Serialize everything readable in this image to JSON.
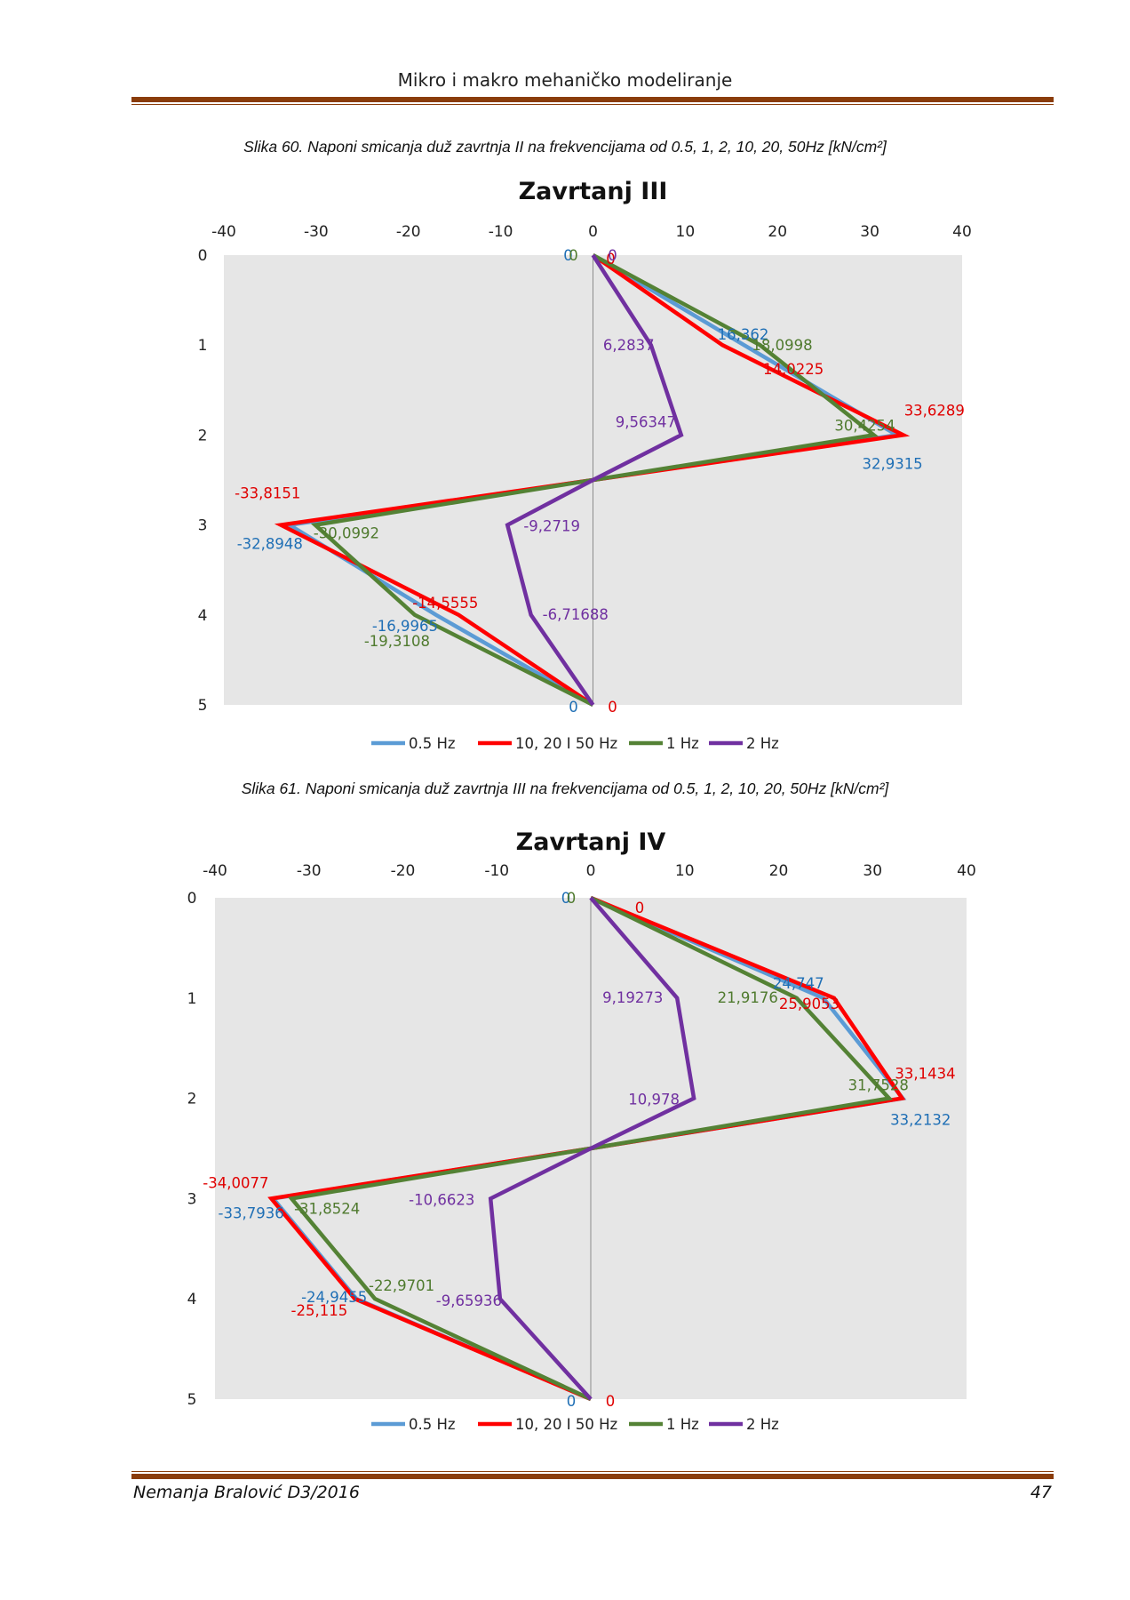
{
  "header": {
    "title": "Mikro i makro mehaničko modeliranje"
  },
  "captions": {
    "fig60": "Slika 60. Naponi smicanja duž zavrtnja II na frekvencijama od 0.5, 1, 2, 10, 20, 50Hz  [kN/cm²]",
    "fig61": "Slika 61. Naponi smicanja duž zavrtnja III na frekvencijama od 0.5, 1, 2, 10, 20, 50Hz  [kN/cm²]"
  },
  "footer": {
    "author": "Nemanja Bralović D3/2016",
    "page": "47"
  },
  "chart_data": [
    {
      "type": "line",
      "title": "Zavrtanj III",
      "xlim": [
        -40,
        40
      ],
      "ylim": [
        0,
        5
      ],
      "x_ticks": [
        -40,
        -30,
        -20,
        -10,
        0,
        10,
        20,
        30,
        40
      ],
      "y_ticks": [
        0,
        1,
        2,
        3,
        4,
        5
      ],
      "y_reversed": true,
      "x_axis_position": "top",
      "grid": false,
      "legend": "bottom",
      "y": [
        0,
        1,
        2,
        2.5,
        3,
        4,
        5
      ],
      "series": [
        {
          "name": "0.5 Hz",
          "color": "#5b9bd5",
          "label_color": "#1f6fb5",
          "x": [
            0,
            16.362,
            32.9315,
            0,
            -32.8948,
            -16.9965,
            0
          ],
          "labels": [
            "0",
            "16,362",
            "32,9315",
            "",
            "-32,8948",
            "-16,9965",
            "0"
          ]
        },
        {
          "name": "10, 20 I 50 Hz",
          "color": "#ff0000",
          "label_color": "#e00000",
          "x": [
            0,
            14.0225,
            33.6289,
            0,
            -33.8151,
            -14.5555,
            0
          ],
          "labels": [
            "0",
            "14,0225",
            "33,6289",
            "",
            "-33,8151",
            "-14,5555",
            "0"
          ]
        },
        {
          "name": "1 Hz",
          "color": "#548235",
          "label_color": "#4f7a2e",
          "x": [
            0,
            18.0998,
            30.4254,
            0,
            -30.0992,
            -19.3108,
            0
          ],
          "labels": [
            "0",
            "18,0998",
            "30,4254",
            "",
            "-30,0992",
            "-19,3108",
            ""
          ]
        },
        {
          "name": "2 Hz",
          "color": "#7030a0",
          "label_color": "#7030a0",
          "x": [
            0,
            6.2837,
            9.56347,
            0,
            -9.2719,
            -6.71688,
            0
          ],
          "labels": [
            "0",
            "6,2837",
            "9,56347",
            "",
            "-9,2719",
            "-6,71688",
            ""
          ]
        }
      ]
    },
    {
      "type": "line",
      "title": "Zavrtanj IV",
      "xlim": [
        -40,
        40
      ],
      "ylim": [
        0,
        5
      ],
      "x_ticks": [
        -40,
        -30,
        -20,
        -10,
        0,
        10,
        20,
        30,
        40
      ],
      "y_ticks": [
        0,
        1,
        2,
        3,
        4,
        5
      ],
      "y_reversed": true,
      "x_axis_position": "top",
      "grid": false,
      "legend": "bottom",
      "y": [
        0,
        1,
        2,
        2.5,
        3,
        4,
        5
      ],
      "series": [
        {
          "name": "0.5 Hz",
          "color": "#5b9bd5",
          "label_color": "#1f6fb5",
          "x": [
            0,
            24.747,
            33.2132,
            0,
            -33.7936,
            -24.9455,
            0
          ],
          "labels": [
            "0",
            "24,747",
            "33,2132",
            "",
            "-33,7936",
            "-24,9455",
            "0"
          ]
        },
        {
          "name": "10, 20 I 50 Hz",
          "color": "#ff0000",
          "label_color": "#e00000",
          "x": [
            0,
            25.9053,
            33.1434,
            0,
            -34.0077,
            -25.115,
            0
          ],
          "labels": [
            "0",
            "25,9053",
            "33,1434",
            "",
            "-34,0077",
            "-25,115",
            "0"
          ]
        },
        {
          "name": "1 Hz",
          "color": "#548235",
          "label_color": "#4f7a2e",
          "x": [
            0,
            21.9176,
            31.7528,
            0,
            -31.8524,
            -22.9701,
            0
          ],
          "labels": [
            "0",
            "21,9176",
            "31,7528",
            "",
            "-31,8524",
            "-22,9701",
            ""
          ]
        },
        {
          "name": "2 Hz",
          "color": "#7030a0",
          "label_color": "#7030a0",
          "x": [
            0,
            9.19273,
            10.978,
            0,
            -10.6623,
            -9.65936,
            0
          ],
          "labels": [
            "",
            "9,19273",
            "10,978",
            "",
            "-10,6623",
            "-9,65936",
            ""
          ]
        }
      ]
    }
  ]
}
